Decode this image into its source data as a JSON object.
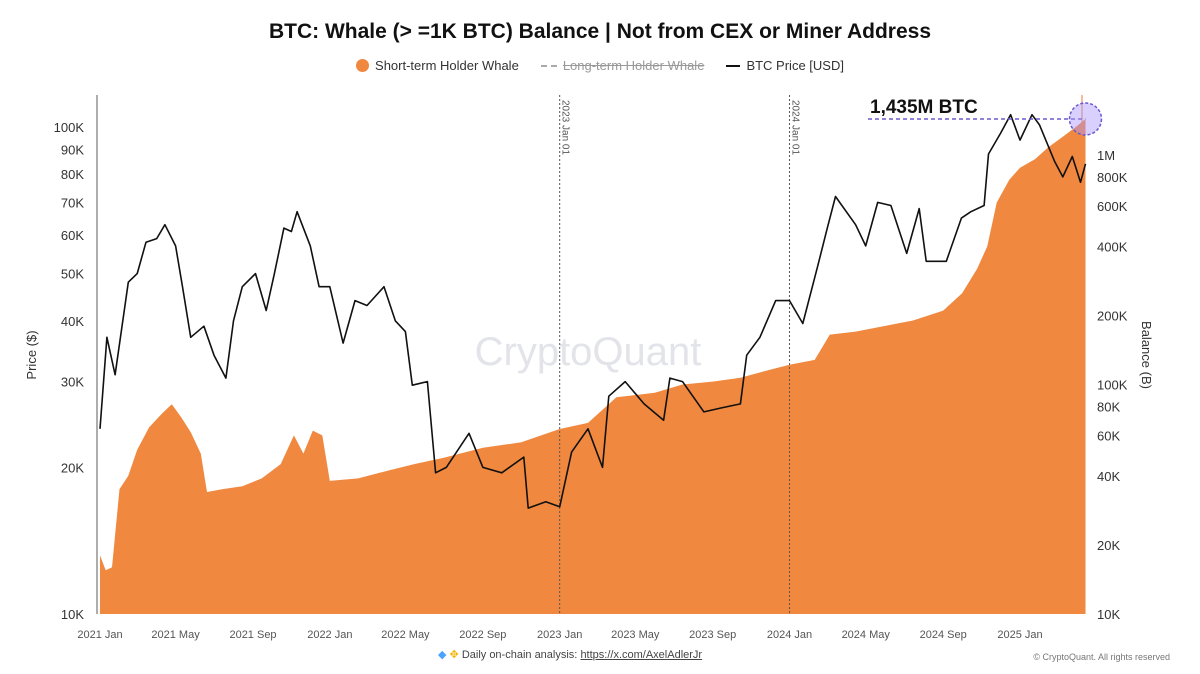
{
  "chart_data": {
    "type": "area+line",
    "title": "BTC: Whale (> =1K BTC) Balance | Not from CEX or Miner Address",
    "legend": [
      "Short-term Holder Whale",
      "Long-term Holder Whale",
      "BTC Price [USD]"
    ],
    "legend_placement": "top-center",
    "ylabel_left": "Price ($)",
    "ylabel_right": "Balance (B)",
    "y_left_scale": "log",
    "y_left_range": [
      10000,
      130000
    ],
    "y_right_scale": "log",
    "y_right_range": [
      10000,
      1600000
    ],
    "x_ticks": [
      "2021 Jan",
      "2021 May",
      "2021 Sep",
      "2022 Jan",
      "2022 May",
      "2022 Sep",
      "2023 Jan",
      "2023 May",
      "2023 Sep",
      "2024 Jan",
      "2024 May",
      "2024 Sep",
      "2025 Jan"
    ],
    "x_tick_dates": [
      "2021-01-01",
      "2021-05-01",
      "2021-09-01",
      "2022-01-01",
      "2022-05-01",
      "2022-09-01",
      "2023-01-01",
      "2023-05-01",
      "2023-09-01",
      "2024-01-01",
      "2024-05-01",
      "2024-09-01",
      "2025-01-01"
    ],
    "y_left_ticks": [
      "10K",
      "20K",
      "30K",
      "40K",
      "50K",
      "60K",
      "70K",
      "80K",
      "90K",
      "100K"
    ],
    "y_left_tick_values": [
      10000,
      20000,
      30000,
      40000,
      50000,
      60000,
      70000,
      80000,
      90000,
      100000
    ],
    "y_right_ticks": [
      "10K",
      "20K",
      "40K",
      "60K",
      "80K",
      "100K",
      "200K",
      "400K",
      "600K",
      "800K",
      "1M"
    ],
    "y_right_tick_values": [
      10000,
      20000,
      40000,
      60000,
      80000,
      100000,
      200000,
      400000,
      600000,
      800000,
      1000000
    ],
    "vlines": [
      {
        "date": "2023-01-01",
        "label": "2023 Jan 01"
      },
      {
        "date": "2024-01-01",
        "label": "2024 Jan 01"
      }
    ],
    "annotation": {
      "text": "1,435M BTC",
      "value": 1435000
    },
    "grid": false,
    "colors": {
      "short_term": "#f0883f",
      "price": "#111111",
      "annotation": "#6a5acd"
    },
    "series": [
      {
        "name": "Short-term Holder Whale",
        "axis": "right",
        "points": [
          [
            "2021-01-01",
            18000
          ],
          [
            "2021-01-10",
            15500
          ],
          [
            "2021-01-20",
            16000
          ],
          [
            "2021-02-01",
            35000
          ],
          [
            "2021-02-15",
            40000
          ],
          [
            "2021-03-01",
            52000
          ],
          [
            "2021-03-20",
            65000
          ],
          [
            "2021-04-10",
            75000
          ],
          [
            "2021-04-25",
            82000
          ],
          [
            "2021-05-10",
            72000
          ],
          [
            "2021-05-25",
            62000
          ],
          [
            "2021-06-10",
            50000
          ],
          [
            "2021-06-20",
            34000
          ],
          [
            "2021-07-15",
            35000
          ],
          [
            "2021-08-15",
            36000
          ],
          [
            "2021-09-15",
            39000
          ],
          [
            "2021-10-15",
            45000
          ],
          [
            "2021-11-05",
            60000
          ],
          [
            "2021-11-20",
            50000
          ],
          [
            "2021-12-05",
            63000
          ],
          [
            "2021-12-20",
            60000
          ],
          [
            "2022-01-01",
            38000
          ],
          [
            "2022-02-15",
            39000
          ],
          [
            "2022-04-01",
            42000
          ],
          [
            "2022-05-15",
            45000
          ],
          [
            "2022-07-01",
            48000
          ],
          [
            "2022-09-01",
            53000
          ],
          [
            "2022-11-01",
            56000
          ],
          [
            "2023-01-01",
            64000
          ],
          [
            "2023-02-15",
            68000
          ],
          [
            "2023-04-01",
            88000
          ],
          [
            "2023-06-01",
            92000
          ],
          [
            "2023-07-15",
            100000
          ],
          [
            "2023-09-01",
            103000
          ],
          [
            "2023-10-15",
            107000
          ],
          [
            "2023-12-01",
            116000
          ],
          [
            "2024-01-01",
            122000
          ],
          [
            "2024-02-10",
            128000
          ],
          [
            "2024-03-05",
            165000
          ],
          [
            "2024-04-15",
            170000
          ],
          [
            "2024-06-01",
            180000
          ],
          [
            "2024-07-15",
            190000
          ],
          [
            "2024-09-01",
            210000
          ],
          [
            "2024-10-01",
            250000
          ],
          [
            "2024-10-25",
            320000
          ],
          [
            "2024-11-10",
            400000
          ],
          [
            "2024-11-25",
            620000
          ],
          [
            "2024-12-15",
            780000
          ],
          [
            "2025-01-01",
            880000
          ],
          [
            "2025-01-25",
            960000
          ],
          [
            "2025-02-15",
            1080000
          ],
          [
            "2025-03-10",
            1200000
          ],
          [
            "2025-03-30",
            1320000
          ],
          [
            "2025-04-15",
            1435000
          ]
        ]
      },
      {
        "name": "BTC Price [USD]",
        "axis": "left",
        "points": [
          [
            "2021-01-01",
            24000
          ],
          [
            "2021-01-12",
            37000
          ],
          [
            "2021-01-25",
            31000
          ],
          [
            "2021-02-15",
            48000
          ],
          [
            "2021-03-01",
            50000
          ],
          [
            "2021-03-15",
            58000
          ],
          [
            "2021-04-01",
            59000
          ],
          [
            "2021-04-14",
            63000
          ],
          [
            "2021-05-01",
            57000
          ],
          [
            "2021-05-12",
            47000
          ],
          [
            "2021-05-25",
            37000
          ],
          [
            "2021-06-15",
            39000
          ],
          [
            "2021-07-01",
            34000
          ],
          [
            "2021-07-20",
            30500
          ],
          [
            "2021-08-01",
            40000
          ],
          [
            "2021-08-15",
            47000
          ],
          [
            "2021-09-05",
            50000
          ],
          [
            "2021-09-22",
            42000
          ],
          [
            "2021-10-05",
            50000
          ],
          [
            "2021-10-20",
            62000
          ],
          [
            "2021-11-01",
            61000
          ],
          [
            "2021-11-10",
            67000
          ],
          [
            "2021-12-01",
            57000
          ],
          [
            "2021-12-15",
            47000
          ],
          [
            "2022-01-01",
            47000
          ],
          [
            "2022-01-22",
            36000
          ],
          [
            "2022-02-10",
            44000
          ],
          [
            "2022-03-01",
            43000
          ],
          [
            "2022-03-28",
            47000
          ],
          [
            "2022-04-15",
            40000
          ],
          [
            "2022-05-01",
            38000
          ],
          [
            "2022-05-12",
            29500
          ],
          [
            "2022-06-05",
            30000
          ],
          [
            "2022-06-18",
            19500
          ],
          [
            "2022-07-05",
            20000
          ],
          [
            "2022-08-10",
            23500
          ],
          [
            "2022-09-01",
            20000
          ],
          [
            "2022-10-01",
            19500
          ],
          [
            "2022-11-05",
            21000
          ],
          [
            "2022-11-12",
            16500
          ],
          [
            "2022-12-10",
            17000
          ],
          [
            "2023-01-01",
            16600
          ],
          [
            "2023-01-20",
            21500
          ],
          [
            "2023-02-15",
            24000
          ],
          [
            "2023-03-10",
            20000
          ],
          [
            "2023-03-20",
            28000
          ],
          [
            "2023-04-15",
            30000
          ],
          [
            "2023-05-15",
            27000
          ],
          [
            "2023-06-15",
            25000
          ],
          [
            "2023-06-25",
            30500
          ],
          [
            "2023-07-15",
            30000
          ],
          [
            "2023-08-18",
            26000
          ],
          [
            "2023-09-15",
            26500
          ],
          [
            "2023-10-15",
            27000
          ],
          [
            "2023-10-25",
            34000
          ],
          [
            "2023-11-15",
            37000
          ],
          [
            "2023-12-10",
            44000
          ],
          [
            "2024-01-01",
            44000
          ],
          [
            "2024-01-22",
            39500
          ],
          [
            "2024-02-15",
            52000
          ],
          [
            "2024-03-01",
            62000
          ],
          [
            "2024-03-14",
            72000
          ],
          [
            "2024-04-15",
            63000
          ],
          [
            "2024-05-01",
            57000
          ],
          [
            "2024-05-20",
            70000
          ],
          [
            "2024-06-10",
            69000
          ],
          [
            "2024-07-05",
            55000
          ],
          [
            "2024-07-25",
            68000
          ],
          [
            "2024-08-05",
            53000
          ],
          [
            "2024-09-06",
            53000
          ],
          [
            "2024-09-30",
            65000
          ],
          [
            "2024-10-15",
            67000
          ],
          [
            "2024-11-05",
            69000
          ],
          [
            "2024-11-12",
            88000
          ],
          [
            "2024-12-01",
            97000
          ],
          [
            "2024-12-17",
            106000
          ],
          [
            "2025-01-01",
            94000
          ],
          [
            "2025-01-20",
            106000
          ],
          [
            "2025-02-01",
            101000
          ],
          [
            "2025-02-25",
            85000
          ],
          [
            "2025-03-10",
            79000
          ],
          [
            "2025-03-25",
            87000
          ],
          [
            "2025-04-07",
            77000
          ],
          [
            "2025-04-15",
            84000
          ]
        ]
      }
    ]
  },
  "watermark": "CryptoQuant",
  "footer": {
    "prefix": "Daily on-chain analysis: ",
    "link": "https://x.com/AxelAdlerJr",
    "icons": [
      "diamond-icon",
      "raised-hands-icon"
    ]
  },
  "copyright": "© CryptoQuant. All rights reserved"
}
